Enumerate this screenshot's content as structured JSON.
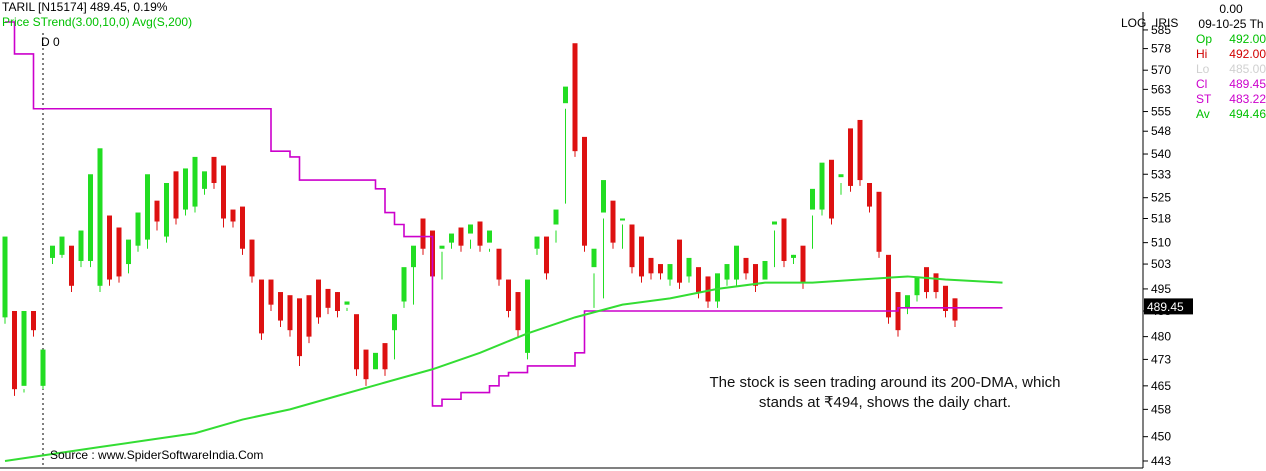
{
  "header": {
    "ticker_line": "TARIL [N15174]   489.45,   0.19%",
    "indicator_line": "Price  STrend(3.00,10,0)  Avg(S,200)",
    "d_label": "D 0"
  },
  "scale": {
    "log": "LOG",
    "iris": "IRIS"
  },
  "info_panel": {
    "change": "0.00",
    "date": "09-10-25 Th",
    "rows": [
      {
        "label": "Op",
        "value": "492.00",
        "color": "#00c000"
      },
      {
        "label": "Hi",
        "value": "492.00",
        "color": "#d00000"
      },
      {
        "label": "Lo",
        "value": "485.00",
        "color": "#d0d0d0"
      },
      {
        "label": "Cl",
        "value": "489.45",
        "color": "#cc00cc"
      },
      {
        "label": "ST",
        "value": "483.22",
        "color": "#cc00cc"
      },
      {
        "label": "Av",
        "value": "494.46",
        "color": "#00c000"
      }
    ]
  },
  "annotation": "The stock is seen trading around its 200-DMA, which stands at ₹494, shows the daily chart.",
  "source": "Source : www.SpiderSoftwareIndia.Com",
  "colors": {
    "up": "#22dd22",
    "down": "#dd1111",
    "supertrend": "#cc00cc",
    "sma": "#33dd33",
    "last_price_bg": "#000000"
  },
  "chart_data": {
    "type": "candlestick",
    "y_scale": "log",
    "ylim": [
      441,
      588
    ],
    "y_ticks": [
      585,
      578,
      570,
      563,
      555,
      548,
      540,
      533,
      525,
      518,
      510,
      503,
      495,
      488,
      480,
      473,
      465,
      458,
      450,
      443
    ],
    "last_price": "489.45",
    "candles": [
      [
        501,
        512,
        486,
        484,
        "up"
      ],
      [
        486,
        488,
        464,
        462,
        "down"
      ],
      [
        464,
        488,
        465,
        463,
        "up"
      ],
      [
        488,
        488,
        482,
        480,
        "down"
      ],
      [
        474,
        476,
        465,
        464,
        "up"
      ],
      [
        507,
        509,
        505,
        503,
        "up"
      ],
      [
        508,
        512,
        506,
        505,
        "up"
      ],
      [
        505,
        509,
        496,
        494,
        "down"
      ],
      [
        504,
        514,
        504,
        502,
        "up"
      ],
      [
        505,
        533,
        504,
        502,
        "up"
      ],
      [
        530,
        542,
        496,
        494,
        "up"
      ],
      [
        510,
        519,
        498,
        496,
        "down"
      ],
      [
        511,
        515,
        499,
        497,
        "down"
      ],
      [
        508,
        511,
        503,
        500,
        "up"
      ],
      [
        511,
        520,
        509,
        507,
        "up"
      ],
      [
        517,
        533,
        511,
        508,
        "up"
      ],
      [
        520,
        524,
        517,
        514,
        "down"
      ],
      [
        525,
        530,
        512,
        510,
        "up"
      ],
      [
        521,
        534,
        518,
        516,
        "down"
      ],
      [
        531,
        535,
        521,
        519,
        "up"
      ],
      [
        534,
        539,
        522,
        520,
        "up"
      ],
      [
        530,
        534,
        528,
        526,
        "up"
      ],
      [
        538,
        539,
        530,
        528,
        "down"
      ],
      [
        535,
        536,
        518,
        515,
        "down"
      ],
      [
        519,
        521,
        517,
        515,
        "down"
      ],
      [
        521,
        522,
        508,
        506,
        "down"
      ],
      [
        511,
        511,
        499,
        497,
        "down"
      ],
      [
        494,
        498,
        481,
        479,
        "down"
      ],
      [
        497,
        498,
        490,
        488,
        "down"
      ],
      [
        493,
        494,
        485,
        483,
        "down"
      ],
      [
        490,
        493,
        482,
        480,
        "down"
      ],
      [
        487,
        492,
        474,
        471,
        "down"
      ],
      [
        489,
        493,
        480,
        478,
        "down"
      ],
      [
        496,
        498,
        486,
        484,
        "down"
      ],
      [
        491,
        495,
        489,
        487,
        "down"
      ],
      [
        494,
        494,
        488,
        486,
        "down"
      ],
      [
        489,
        491,
        490,
        488,
        "up"
      ],
      [
        482,
        487,
        470,
        468,
        "down"
      ],
      [
        472,
        476,
        467,
        465,
        "down"
      ],
      [
        468,
        475,
        470,
        468,
        "up"
      ],
      [
        476,
        478,
        470,
        468,
        "down"
      ],
      [
        473,
        482,
        487,
        485,
        "up"
      ],
      [
        496,
        502,
        491,
        489,
        "up"
      ],
      [
        490,
        502,
        509,
        507,
        "up"
      ],
      [
        513,
        518,
        508,
        506,
        "down"
      ],
      [
        511,
        514,
        499,
        497,
        "down"
      ],
      [
        498,
        508,
        509,
        507,
        "up"
      ],
      [
        511,
        513,
        510,
        508,
        "up"
      ],
      [
        513,
        515,
        509,
        507,
        "down"
      ],
      [
        508,
        516,
        513,
        511,
        "up"
      ],
      [
        514,
        517,
        509,
        507,
        "down"
      ],
      [
        507,
        514,
        510,
        508,
        "up"
      ],
      [
        505,
        508,
        498,
        496,
        "down"
      ],
      [
        495,
        498,
        488,
        486,
        "down"
      ],
      [
        492,
        494,
        482,
        480,
        "down"
      ],
      [
        481,
        498,
        475,
        473,
        "up"
      ],
      [
        508,
        512,
        508,
        506,
        "up"
      ],
      [
        511,
        512,
        500,
        498,
        "down"
      ],
      [
        510,
        521,
        516,
        514,
        "up"
      ],
      [
        523,
        564,
        558,
        556,
        "up"
      ],
      [
        562,
        580,
        541,
        539,
        "down"
      ],
      [
        541,
        546,
        509,
        507,
        "down"
      ],
      [
        489,
        508,
        502,
        500,
        "up"
      ],
      [
        492,
        531,
        520,
        518,
        "up"
      ],
      [
        521,
        524,
        510,
        508,
        "down"
      ],
      [
        508,
        518,
        518,
        516,
        "up"
      ],
      [
        516,
        516,
        502,
        500,
        "down"
      ],
      [
        510,
        512,
        499,
        497,
        "down"
      ],
      [
        502,
        505,
        500,
        498,
        "down"
      ],
      [
        502,
        503,
        500,
        498,
        "down"
      ],
      [
        499,
        503,
        498,
        496,
        "up"
      ],
      [
        509,
        511,
        497,
        495,
        "down"
      ],
      [
        503,
        505,
        499,
        497,
        "up"
      ],
      [
        501,
        502,
        494,
        492,
        "down"
      ],
      [
        497,
        499,
        491,
        489,
        "down"
      ],
      [
        498,
        500,
        491,
        489,
        "up"
      ],
      [
        502,
        503,
        498,
        496,
        "up"
      ],
      [
        500,
        509,
        498,
        496,
        "up"
      ],
      [
        504,
        505,
        500,
        498,
        "down"
      ],
      [
        502,
        503,
        496,
        494,
        "down"
      ],
      [
        496,
        504,
        498,
        496,
        "up"
      ],
      [
        502,
        517,
        516,
        514,
        "up"
      ],
      [
        517,
        518,
        504,
        502,
        "down"
      ],
      [
        506,
        506,
        505,
        503,
        "up"
      ],
      [
        507,
        509,
        497,
        495,
        "down"
      ],
      [
        508,
        528,
        521,
        519,
        "up"
      ],
      [
        530,
        537,
        521,
        519,
        "up"
      ],
      [
        532,
        538,
        518,
        516,
        "down"
      ],
      [
        526,
        533,
        532,
        530,
        "up"
      ],
      [
        538,
        549,
        529,
        527,
        "down"
      ],
      [
        537,
        552,
        531,
        529,
        "down"
      ],
      [
        527,
        530,
        522,
        520,
        "down"
      ],
      [
        525,
        527,
        507,
        505,
        "down"
      ],
      [
        505,
        506,
        486,
        484,
        "down"
      ],
      [
        490,
        494,
        482,
        480,
        "down"
      ],
      [
        489,
        493,
        489,
        487,
        "up"
      ],
      [
        497,
        499,
        493,
        491,
        "up"
      ],
      [
        499,
        502,
        494,
        492,
        "down"
      ],
      [
        497,
        500,
        494,
        492,
        "down"
      ],
      [
        494,
        496,
        488,
        486,
        "down"
      ],
      [
        492,
        492,
        485,
        483,
        "down"
      ]
    ],
    "supertrend": [
      [
        0,
        588
      ],
      [
        1,
        576
      ],
      [
        2,
        576
      ],
      [
        3,
        556
      ],
      [
        4,
        556
      ],
      [
        5,
        556
      ],
      [
        6,
        556
      ],
      [
        7,
        556
      ],
      [
        8,
        556
      ],
      [
        9,
        556
      ],
      [
        10,
        556
      ],
      [
        11,
        556
      ],
      [
        12,
        556
      ],
      [
        13,
        556
      ],
      [
        14,
        556
      ],
      [
        15,
        556
      ],
      [
        16,
        556
      ],
      [
        17,
        556
      ],
      [
        18,
        556
      ],
      [
        19,
        556
      ],
      [
        20,
        556
      ],
      [
        21,
        556
      ],
      [
        22,
        556
      ],
      [
        23,
        556
      ],
      [
        24,
        556
      ],
      [
        25,
        556
      ],
      [
        26,
        556
      ],
      [
        27,
        556
      ],
      [
        28,
        541
      ],
      [
        29,
        541
      ],
      [
        30,
        539
      ],
      [
        31,
        531
      ],
      [
        32,
        531
      ],
      [
        33,
        531
      ],
      [
        34,
        531
      ],
      [
        35,
        531
      ],
      [
        36,
        531
      ],
      [
        37,
        531
      ],
      [
        38,
        531
      ],
      [
        39,
        528
      ],
      [
        40,
        520
      ],
      [
        41,
        516
      ],
      [
        42,
        512
      ],
      [
        43,
        512
      ],
      [
        44,
        512
      ],
      [
        45,
        459
      ],
      [
        46,
        461
      ],
      [
        47,
        461
      ],
      [
        48,
        463
      ],
      [
        49,
        463
      ],
      [
        50,
        463
      ],
      [
        51,
        465
      ],
      [
        52,
        468
      ],
      [
        53,
        469
      ],
      [
        54,
        469
      ],
      [
        55,
        471
      ],
      [
        56,
        471
      ],
      [
        57,
        471
      ],
      [
        58,
        471
      ],
      [
        59,
        471
      ],
      [
        60,
        475
      ],
      [
        61,
        488
      ],
      [
        62,
        488
      ],
      [
        63,
        488
      ],
      [
        64,
        488
      ],
      [
        65,
        488
      ],
      [
        66,
        488
      ],
      [
        67,
        488
      ],
      [
        68,
        488
      ],
      [
        69,
        488
      ],
      [
        70,
        488
      ],
      [
        71,
        488
      ],
      [
        72,
        488
      ],
      [
        73,
        488
      ],
      [
        74,
        488
      ],
      [
        75,
        488
      ],
      [
        76,
        488
      ],
      [
        77,
        488
      ],
      [
        78,
        488
      ],
      [
        79,
        488
      ],
      [
        80,
        488
      ],
      [
        81,
        488
      ],
      [
        82,
        488
      ],
      [
        83,
        488
      ],
      [
        84,
        488
      ],
      [
        85,
        488
      ],
      [
        86,
        488
      ],
      [
        87,
        488
      ],
      [
        88,
        488
      ],
      [
        89,
        488
      ],
      [
        90,
        488
      ],
      [
        91,
        488
      ],
      [
        92,
        488
      ],
      [
        93,
        488
      ],
      [
        94,
        489
      ],
      [
        95,
        489
      ],
      [
        96,
        489
      ],
      [
        97,
        489
      ],
      [
        98,
        489
      ],
      [
        99,
        489
      ],
      [
        100,
        489
      ],
      [
        101,
        489
      ],
      [
        102,
        489
      ],
      [
        103,
        489
      ],
      [
        104,
        489
      ],
      [
        105,
        489
      ]
    ],
    "sma200": [
      [
        0,
        443
      ],
      [
        5,
        445
      ],
      [
        10,
        447
      ],
      [
        15,
        449
      ],
      [
        20,
        451
      ],
      [
        25,
        455
      ],
      [
        30,
        458
      ],
      [
        35,
        462
      ],
      [
        40,
        466
      ],
      [
        45,
        470
      ],
      [
        50,
        475
      ],
      [
        55,
        481
      ],
      [
        60,
        486
      ],
      [
        65,
        490
      ],
      [
        70,
        492
      ],
      [
        75,
        495
      ],
      [
        80,
        497
      ],
      [
        85,
        497
      ],
      [
        90,
        498
      ],
      [
        95,
        499
      ],
      [
        99,
        498
      ],
      [
        105,
        497
      ]
    ]
  }
}
